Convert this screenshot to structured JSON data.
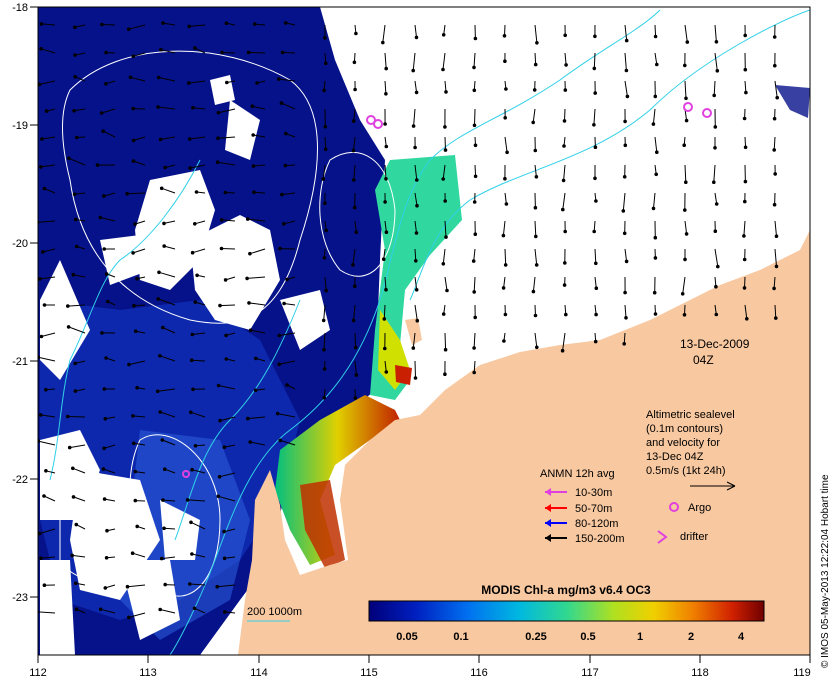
{
  "axes": {
    "x_ticks": [
      "112",
      "113",
      "114",
      "115",
      "116",
      "117",
      "118",
      "119"
    ],
    "y_ticks": [
      "-18",
      "-19",
      "-20",
      "-21",
      "-22",
      "-23"
    ]
  },
  "date": {
    "day": "13-Dec-2009",
    "time": "04Z"
  },
  "altimetry_note": {
    "lines": [
      "Altimetric sealevel",
      "(0.1m contours)",
      "and velocity for",
      "13-Dec 04Z",
      "0.5m/s (1kt 24h)"
    ]
  },
  "legend": {
    "title": "ANMN 12h avg",
    "items": [
      {
        "label": "10-30m",
        "color": "#e040e0"
      },
      {
        "label": "50-70m",
        "color": "#ff0000"
      },
      {
        "label": "80-120m",
        "color": "#0000ff"
      },
      {
        "label": "150-200m",
        "color": "#000000"
      }
    ],
    "argo_label": "Argo",
    "drifter_label": "drifter",
    "marker_color": "#e040e0"
  },
  "colorbar": {
    "title": "MODIS Chl-a mg/m3 v6.4 OC3",
    "labels": [
      "0.05",
      "0.1",
      "0.25",
      "0.5",
      "1",
      "2",
      "4"
    ],
    "colors": [
      "#00007a",
      "#0010b0",
      "#0050e0",
      "#00a0f0",
      "#00c8c0",
      "#30d890",
      "#90e040",
      "#e0e000",
      "#f0b000",
      "#e86000",
      "#c82000",
      "#800000"
    ]
  },
  "bathymetry_legend": "200  1000m",
  "credit": "© IMOS 05-May-2013 12:22:04 Hobart time",
  "colors": {
    "land": "#f8c8a0",
    "ocean_low": "#06128a",
    "cloud": "#ffffff",
    "contour": "#30d0e8"
  }
}
